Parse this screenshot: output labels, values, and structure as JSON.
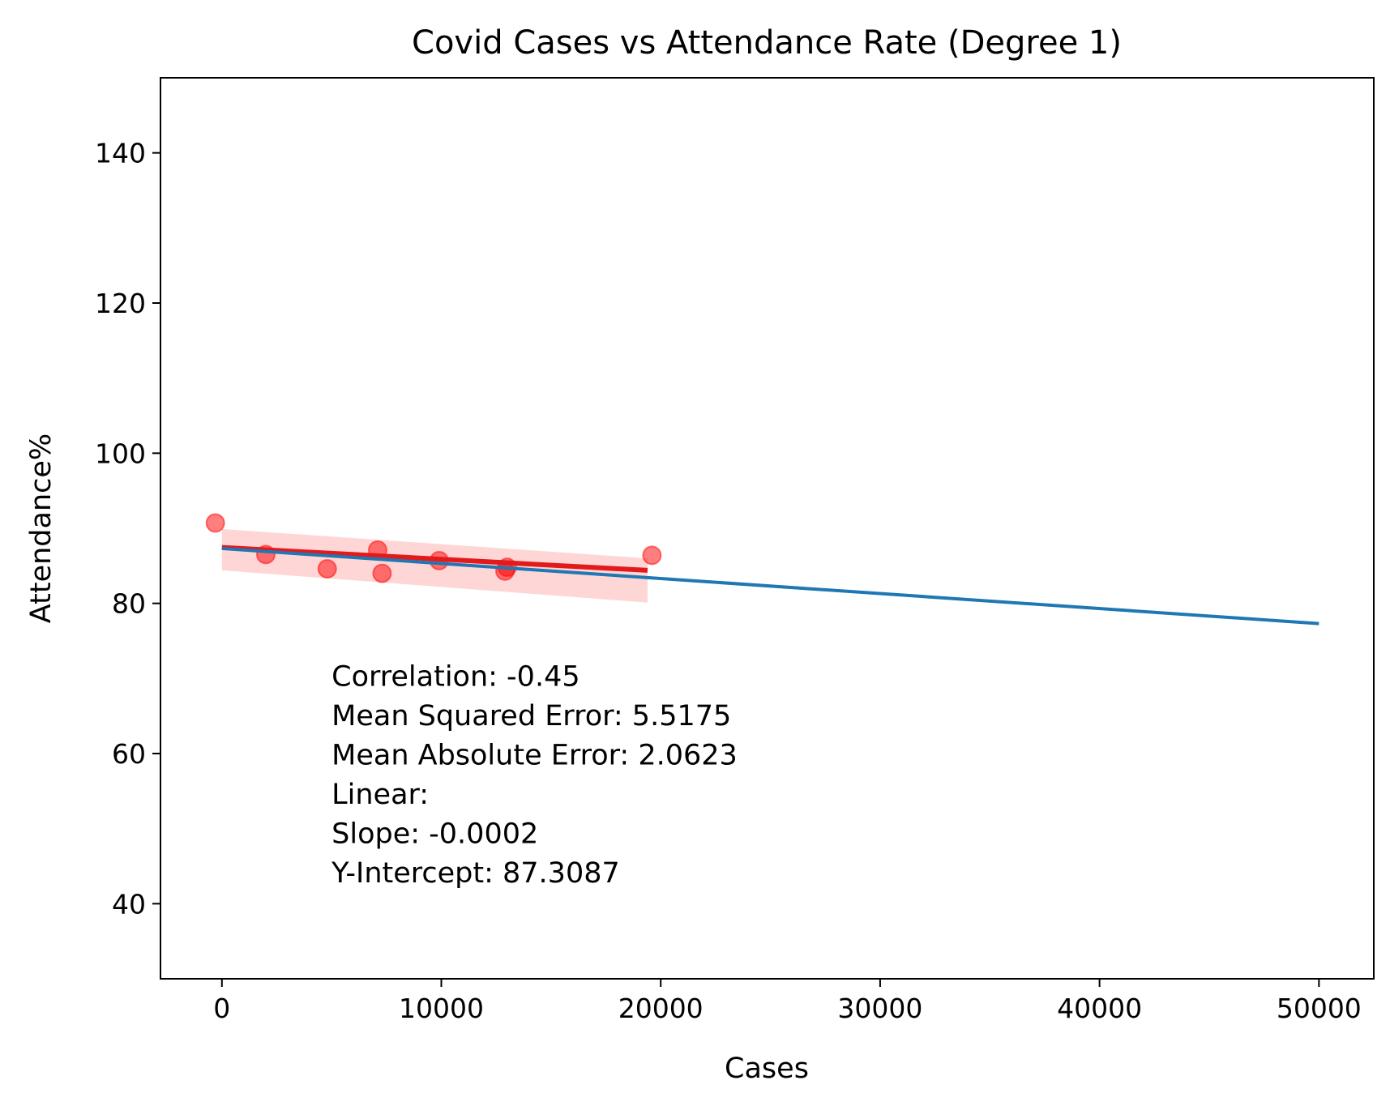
{
  "chart_data": {
    "type": "scatter",
    "title": "Covid Cases vs Attendance Rate (Degree 1)",
    "xlabel": "Cases",
    "ylabel": "Attendance%",
    "xlim": [
      -2800,
      52500
    ],
    "ylim": [
      30,
      150
    ],
    "xticks": [
      0,
      10000,
      20000,
      30000,
      40000,
      50000
    ],
    "yticks": [
      40,
      60,
      80,
      100,
      120,
      140
    ],
    "grid": false,
    "colors": {
      "points": "#ff0000",
      "points_alpha": 0.5,
      "band": "#ffc0c0",
      "seaborn_line": "#e31a1c",
      "fit_line": "#1f77b4"
    },
    "series": [
      {
        "type": "scatter",
        "x": [
          -300,
          2000,
          4800,
          7100,
          7300,
          9900,
          12900,
          13000,
          19600
        ],
        "y": [
          90.7,
          86.5,
          84.6,
          87.1,
          84.0,
          85.7,
          84.3,
          84.8,
          86.4
        ]
      }
    ],
    "regression": {
      "x_range": [
        0,
        19400
      ],
      "line_y": [
        87.45,
        84.4
      ],
      "band_upper": [
        89.9,
        86.0
      ],
      "band_lower": [
        84.4,
        80.1
      ]
    },
    "fit": {
      "x_range": [
        0,
        50000
      ],
      "slope": -0.0002,
      "intercept": 87.3087
    },
    "annotation": {
      "lines": [
        "Correlation: -0.45",
        "Mean Squared Error: 5.5175",
        "Mean Absolute Error: 2.0623",
        "Linear:",
        "Slope: -0.0002",
        "Y-Intercept: 87.3087"
      ],
      "anchor_x": 5000,
      "anchor_y": 69
    }
  }
}
